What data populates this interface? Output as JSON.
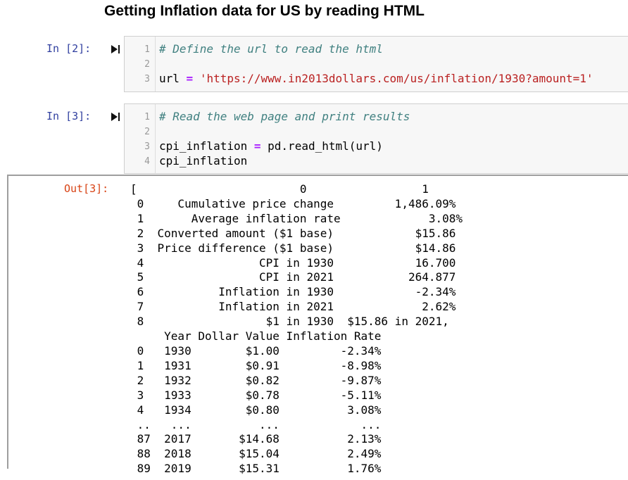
{
  "heading": "Getting Inflation data for US by reading HTML",
  "cells": [
    {
      "prompt": "In [2]:",
      "line_numbers": [
        "1",
        "2",
        "3"
      ],
      "comment": "# Define the url to read the html",
      "var": "url",
      "op": "=",
      "string": "'https://www.in2013dollars.com/us/inflation/1930?amount=1'"
    },
    {
      "prompt": "In [3]:",
      "line_numbers": [
        "1",
        "2",
        "3",
        "4"
      ],
      "comment": "# Read the web page and print results",
      "var": "cpi_inflation",
      "op": "=",
      "call": "pd.read_html(url)",
      "line4": "cpi_inflation"
    }
  ],
  "output": {
    "prompt": "Out[3]:",
    "lines": [
      "[                        0                 1",
      " 0     Cumulative price change         1,486.09%",
      " 1       Average inflation rate             3.08%",
      " 2  Converted amount ($1 base)            $15.86",
      " 3  Price difference ($1 base)            $14.86",
      " 4                 CPI in 1930            16.700",
      " 5                 CPI in 2021           264.877",
      " 6           Inflation in 1930            -2.34%",
      " 7           Inflation in 2021             2.62%",
      " 8                  $1 in 1930  $15.86 in 2021,",
      "     Year Dollar Value Inflation Rate",
      " 0   1930        $1.00         -2.34%",
      " 1   1931        $0.91         -8.98%",
      " 2   1932        $0.82         -9.87%",
      " 3   1933        $0.78         -5.11%",
      " 4   1934        $0.80          3.08%",
      " ..   ...          ...            ...",
      " 87  2017       $14.68          2.13%",
      " 88  2018       $15.04          2.49%",
      " 89  2019       $15.31          1.76%"
    ]
  }
}
